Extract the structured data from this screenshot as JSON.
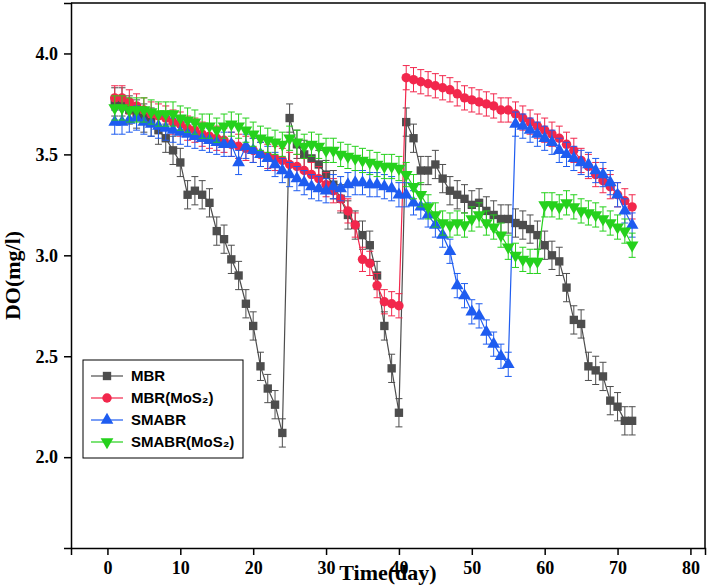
{
  "chart_data": {
    "type": "line",
    "x_label": "Time(day)",
    "y_label": "DO(mg/l)",
    "xlim": [
      -5,
      82
    ],
    "ylim": [
      1.55,
      4.25
    ],
    "xticks": [
      0,
      10,
      20,
      30,
      40,
      50,
      60,
      70,
      80
    ],
    "yticks": [
      {
        "value": 2.0,
        "label": "2.0"
      },
      {
        "value": 2.5,
        "label": "2.5"
      },
      {
        "value": 3.0,
        "label": "3.0"
      },
      {
        "value": 3.5,
        "label": "3.5"
      },
      {
        "value": 4.0,
        "label": "4.0"
      }
    ],
    "grid": false,
    "legend": "lower left",
    "x": [
      1,
      2,
      3,
      4,
      5,
      6,
      7,
      8,
      9,
      10,
      11,
      12,
      13,
      14,
      15,
      16,
      17,
      18,
      19,
      20,
      21,
      22,
      23,
      24,
      25,
      26,
      27,
      28,
      29,
      30,
      31,
      32,
      33,
      34,
      35,
      36,
      37,
      38,
      39,
      40,
      41,
      42,
      43,
      44,
      45,
      46,
      47,
      48,
      49,
      50,
      51,
      52,
      53,
      54,
      55,
      56,
      57,
      58,
      59,
      60,
      61,
      62,
      63,
      64,
      65,
      66,
      67,
      68,
      69,
      70,
      71,
      72
    ],
    "series": [
      {
        "name": "MBR",
        "color": "#4d4d4d",
        "marker": "square",
        "line_style": "solid",
        "values": [
          3.76,
          3.76,
          3.72,
          3.7,
          3.68,
          3.66,
          3.62,
          3.58,
          3.52,
          3.46,
          3.3,
          3.32,
          3.3,
          3.26,
          3.12,
          3.08,
          2.98,
          2.9,
          2.76,
          2.65,
          2.45,
          2.34,
          2.26,
          2.12,
          3.68,
          3.55,
          3.5,
          3.48,
          3.45,
          3.4,
          3.35,
          3.28,
          3.2,
          3.15,
          3.1,
          3.05,
          2.9,
          2.65,
          2.44,
          2.22,
          3.66,
          3.58,
          3.42,
          3.42,
          3.45,
          3.38,
          3.32,
          3.3,
          3.28,
          3.25,
          3.26,
          3.22,
          3.2,
          3.18,
          3.18,
          3.16,
          3.15,
          3.13,
          3.1,
          3.05,
          3.0,
          2.97,
          2.84,
          2.68,
          2.66,
          2.45,
          2.43,
          2.4,
          2.28,
          2.25,
          2.18,
          2.18
        ],
        "errors": [
          0.07,
          0.07,
          0.07,
          0.07,
          0.07,
          0.07,
          0.07,
          0.07,
          0.07,
          0.07,
          0.07,
          0.07,
          0.07,
          0.07,
          0.07,
          0.07,
          0.07,
          0.07,
          0.07,
          0.07,
          0.07,
          0.07,
          0.07,
          0.07,
          0.07,
          0.07,
          0.07,
          0.07,
          0.07,
          0.07,
          0.07,
          0.07,
          0.07,
          0.07,
          0.07,
          0.07,
          0.07,
          0.07,
          0.07,
          0.07,
          0.07,
          0.07,
          0.07,
          0.07,
          0.07,
          0.07,
          0.07,
          0.07,
          0.07,
          0.07,
          0.07,
          0.07,
          0.07,
          0.07,
          0.07,
          0.07,
          0.07,
          0.07,
          0.07,
          0.07,
          0.07,
          0.07,
          0.07,
          0.07,
          0.07,
          0.07,
          0.07,
          0.07,
          0.07,
          0.07,
          0.07,
          0.07
        ]
      },
      {
        "name": "MBR(MoS₂)",
        "color": "#f2274c",
        "marker": "circle",
        "line_style": "solid",
        "values": [
          3.78,
          3.78,
          3.76,
          3.74,
          3.72,
          3.7,
          3.69,
          3.68,
          3.66,
          3.65,
          3.63,
          3.62,
          3.6,
          3.59,
          3.58,
          3.57,
          3.55,
          3.54,
          3.53,
          3.52,
          3.5,
          3.49,
          3.48,
          3.47,
          3.45,
          3.44,
          3.42,
          3.4,
          3.38,
          3.35,
          3.32,
          3.28,
          3.22,
          3.15,
          2.98,
          2.96,
          2.85,
          2.77,
          2.76,
          2.75,
          3.88,
          3.87,
          3.86,
          3.85,
          3.84,
          3.83,
          3.82,
          3.8,
          3.78,
          3.77,
          3.76,
          3.75,
          3.74,
          3.72,
          3.72,
          3.7,
          3.68,
          3.66,
          3.64,
          3.62,
          3.6,
          3.58,
          3.55,
          3.52,
          3.47,
          3.44,
          3.4,
          3.37,
          3.34,
          3.3,
          3.27,
          3.24
        ],
        "errors": [
          0.06,
          0.06,
          0.06,
          0.06,
          0.06,
          0.06,
          0.06,
          0.06,
          0.06,
          0.06,
          0.06,
          0.06,
          0.06,
          0.06,
          0.06,
          0.06,
          0.06,
          0.06,
          0.06,
          0.06,
          0.06,
          0.06,
          0.06,
          0.06,
          0.06,
          0.06,
          0.06,
          0.06,
          0.06,
          0.06,
          0.06,
          0.06,
          0.06,
          0.06,
          0.06,
          0.06,
          0.06,
          0.06,
          0.06,
          0.06,
          0.06,
          0.06,
          0.06,
          0.06,
          0.06,
          0.06,
          0.06,
          0.06,
          0.06,
          0.06,
          0.06,
          0.06,
          0.06,
          0.06,
          0.06,
          0.06,
          0.06,
          0.06,
          0.06,
          0.06,
          0.06,
          0.06,
          0.06,
          0.06,
          0.06,
          0.06,
          0.06,
          0.06,
          0.06,
          0.06,
          0.06,
          0.06
        ]
      },
      {
        "name": "SMABR",
        "color": "#1e5cf0",
        "marker": "triangle-up",
        "line_style": "solid",
        "values": [
          3.66,
          3.66,
          3.67,
          3.68,
          3.66,
          3.65,
          3.64,
          3.63,
          3.62,
          3.61,
          3.6,
          3.59,
          3.58,
          3.57,
          3.56,
          3.55,
          3.55,
          3.46,
          3.54,
          3.52,
          3.5,
          3.48,
          3.45,
          3.42,
          3.4,
          3.38,
          3.36,
          3.34,
          3.33,
          3.32,
          3.34,
          3.33,
          3.35,
          3.36,
          3.36,
          3.35,
          3.35,
          3.34,
          3.33,
          3.3,
          3.3,
          3.26,
          3.24,
          3.2,
          3.15,
          3.1,
          3.02,
          2.85,
          2.8,
          2.72,
          2.7,
          2.62,
          2.56,
          2.5,
          2.46,
          3.65,
          3.64,
          3.62,
          3.6,
          3.58,
          3.56,
          3.52,
          3.5,
          3.48,
          3.46,
          3.45,
          3.42,
          3.4,
          3.36,
          3.3,
          3.22,
          3.15
        ],
        "errors": [
          0.06,
          0.06,
          0.06,
          0.06,
          0.06,
          0.06,
          0.06,
          0.06,
          0.06,
          0.06,
          0.06,
          0.06,
          0.06,
          0.06,
          0.06,
          0.06,
          0.06,
          0.06,
          0.06,
          0.06,
          0.06,
          0.06,
          0.06,
          0.06,
          0.06,
          0.06,
          0.06,
          0.06,
          0.06,
          0.06,
          0.06,
          0.06,
          0.06,
          0.06,
          0.06,
          0.06,
          0.06,
          0.06,
          0.06,
          0.06,
          0.06,
          0.06,
          0.06,
          0.06,
          0.06,
          0.06,
          0.06,
          0.06,
          0.06,
          0.06,
          0.06,
          0.06,
          0.06,
          0.06,
          0.06,
          0.06,
          0.06,
          0.06,
          0.06,
          0.06,
          0.06,
          0.06,
          0.06,
          0.06,
          0.06,
          0.06,
          0.06,
          0.06,
          0.06,
          0.06,
          0.06,
          0.06
        ]
      },
      {
        "name": "SMABR(MoS₂)",
        "color": "#25d11c",
        "marker": "triangle-down",
        "line_style": "solid",
        "values": [
          3.73,
          3.73,
          3.72,
          3.72,
          3.72,
          3.71,
          3.7,
          3.7,
          3.7,
          3.68,
          3.67,
          3.66,
          3.64,
          3.64,
          3.62,
          3.64,
          3.65,
          3.64,
          3.62,
          3.6,
          3.58,
          3.57,
          3.56,
          3.55,
          3.58,
          3.56,
          3.54,
          3.55,
          3.54,
          3.52,
          3.52,
          3.5,
          3.49,
          3.48,
          3.47,
          3.46,
          3.45,
          3.44,
          3.44,
          3.43,
          3.4,
          3.34,
          3.3,
          3.24,
          3.2,
          3.16,
          3.15,
          3.16,
          3.15,
          3.18,
          3.2,
          3.16,
          3.14,
          3.1,
          3.04,
          3.0,
          2.98,
          2.97,
          2.97,
          3.25,
          3.25,
          3.24,
          3.26,
          3.24,
          3.22,
          3.21,
          3.2,
          3.18,
          3.16,
          3.14,
          3.12,
          3.05
        ],
        "errors": [
          0.06,
          0.06,
          0.06,
          0.06,
          0.06,
          0.06,
          0.06,
          0.06,
          0.06,
          0.06,
          0.06,
          0.06,
          0.06,
          0.06,
          0.06,
          0.06,
          0.06,
          0.06,
          0.06,
          0.06,
          0.06,
          0.06,
          0.06,
          0.06,
          0.06,
          0.06,
          0.06,
          0.06,
          0.06,
          0.06,
          0.06,
          0.06,
          0.06,
          0.06,
          0.06,
          0.06,
          0.06,
          0.06,
          0.06,
          0.06,
          0.06,
          0.06,
          0.06,
          0.06,
          0.06,
          0.06,
          0.06,
          0.06,
          0.06,
          0.06,
          0.06,
          0.06,
          0.06,
          0.06,
          0.06,
          0.06,
          0.06,
          0.06,
          0.06,
          0.06,
          0.06,
          0.06,
          0.06,
          0.06,
          0.06,
          0.06,
          0.06,
          0.06,
          0.06,
          0.06,
          0.06,
          0.06
        ]
      }
    ]
  }
}
